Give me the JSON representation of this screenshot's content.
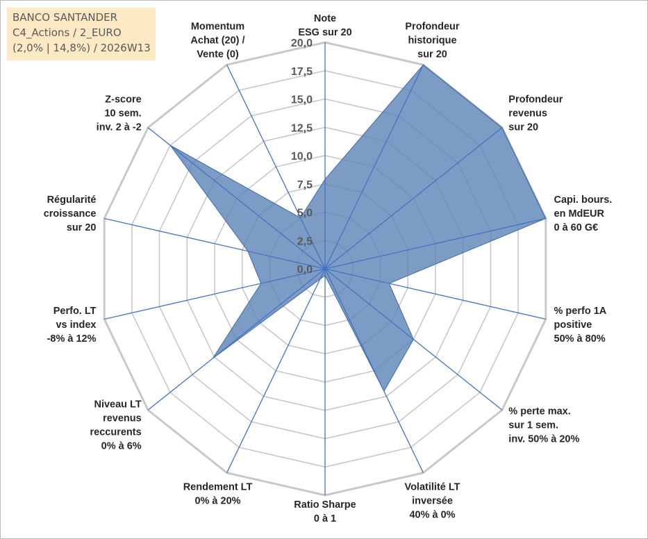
{
  "title_box": {
    "line1": "BANCO SANTANDER",
    "line2": "C4_Actions / 2_EURO",
    "line3": "(2,0% | 14,8%) / 2026W13"
  },
  "chart_data": {
    "type": "radar",
    "rmin": 0,
    "rmax": 20,
    "ticks": [
      "0,0",
      "2,5",
      "5,0",
      "7,5",
      "10,0",
      "12,5",
      "15,0",
      "17,5",
      "20,0"
    ],
    "grid": true,
    "axes": [
      [
        "Note",
        "ESG sur 20"
      ],
      [
        "Profondeur",
        "historique",
        "sur 20"
      ],
      [
        "Profondeur",
        "revenus",
        "sur 20"
      ],
      [
        "Capi. bours.",
        "en MdEUR",
        "0 à 60 G€"
      ],
      [
        "% perfo 1A",
        "positive",
        "50% à 80%"
      ],
      [
        "% perte max.",
        "sur 1 sem.",
        "inv. 50% à 20%"
      ],
      [
        "Volatilité LT",
        "inversée",
        "40% à 0%"
      ],
      [
        "Ratio Sharpe",
        "0 à 1"
      ],
      [
        "Rendement LT",
        "0% à 20%"
      ],
      [
        "Niveau LT",
        "revenus",
        "reccurents",
        "0% à 6%"
      ],
      [
        "Perfo. LT",
        "vs index",
        "-8% à 12%"
      ],
      [
        "Régularité",
        "croissance",
        "sur 20"
      ],
      [
        "Z-score",
        "10 sem.",
        "inv. 2 à -2"
      ],
      [
        "Momentum",
        "Achat (20) /",
        "Vente (0)"
      ]
    ],
    "values": [
      7.9,
      20.0,
      20.0,
      20.0,
      5.8,
      10.0,
      12.0,
      0.6,
      1.0,
      12.7,
      5.8,
      7.0,
      17.5,
      5.0
    ],
    "colors": {
      "fill": "#5b83b7",
      "fill_opacity": 0.8,
      "series_stroke": "#3f6aa3",
      "spoke": "#4472c4",
      "grid": "#c8c8c8"
    }
  }
}
